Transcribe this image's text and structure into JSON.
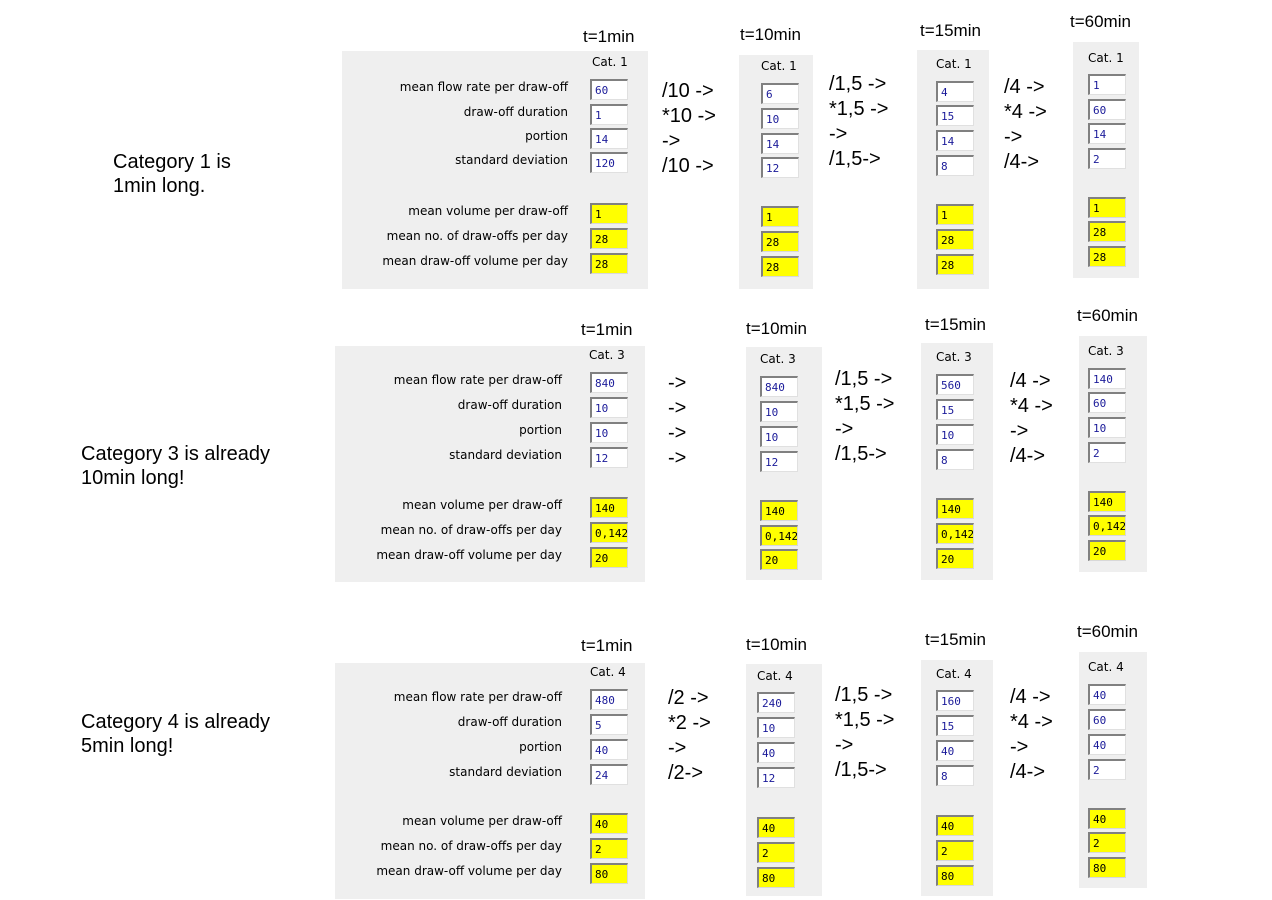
{
  "labels": {
    "flow": "mean flow rate per draw-off",
    "duration": "draw-off duration",
    "portion": "portion",
    "sd": "standard deviation",
    "vol": "mean volume per draw-off",
    "num": "mean no. of draw-offs per day",
    "dayvol": "mean draw-off volume per day"
  },
  "times": [
    "t=1min",
    "t=10min",
    "t=15min",
    "t=60min"
  ],
  "sections": [
    {
      "note": [
        "Category 1 is",
        "1min long."
      ],
      "cat": "Cat. 1",
      "ops": [
        [
          "/10 ->",
          "*10 ->",
          "->",
          "/10 ->"
        ],
        [
          "/1,5 ->",
          "*1,5 ->",
          "->",
          "/1,5->"
        ],
        [
          "/4 ->",
          "*4 ->",
          "->",
          "/4->"
        ]
      ],
      "panels": [
        {
          "in": [
            "60",
            "1",
            "14",
            "120"
          ],
          "out": [
            "1",
            "28",
            "28"
          ]
        },
        {
          "in": [
            "6",
            "10",
            "14",
            "12"
          ],
          "out": [
            "1",
            "28",
            "28"
          ]
        },
        {
          "in": [
            "4",
            "15",
            "14",
            "8"
          ],
          "out": [
            "1",
            "28",
            "28"
          ]
        },
        {
          "in": [
            "1",
            "60",
            "14",
            "2"
          ],
          "out": [
            "1",
            "28",
            "28"
          ]
        }
      ]
    },
    {
      "note": [
        "Category 3 is already",
        "10min long!"
      ],
      "cat": "Cat. 3",
      "ops": [
        [
          "->",
          "->",
          "->",
          "->"
        ],
        [
          "/1,5 ->",
          "*1,5 ->",
          "->",
          "/1,5->"
        ],
        [
          "/4 ->",
          "*4 ->",
          "->",
          "/4->"
        ]
      ],
      "panels": [
        {
          "in": [
            "840",
            "10",
            "10",
            "12"
          ],
          "out": [
            "140",
            "0,142",
            "20"
          ]
        },
        {
          "in": [
            "840",
            "10",
            "10",
            "12"
          ],
          "out": [
            "140",
            "0,142",
            "20"
          ]
        },
        {
          "in": [
            "560",
            "15",
            "10",
            "8"
          ],
          "out": [
            "140",
            "0,142",
            "20"
          ]
        },
        {
          "in": [
            "140",
            "60",
            "10",
            "2"
          ],
          "out": [
            "140",
            "0,142",
            "20"
          ]
        }
      ]
    },
    {
      "note": [
        "Category 4 is already",
        "5min long!"
      ],
      "cat": "Cat. 4",
      "ops": [
        [
          "/2 ->",
          "*2 ->",
          "->",
          "/2->"
        ],
        [
          "/1,5 ->",
          "*1,5 ->",
          "->",
          "/1,5->"
        ],
        [
          "/4 ->",
          "*4 ->",
          "->",
          "/4->"
        ]
      ],
      "panels": [
        {
          "in": [
            "480",
            "5",
            "40",
            "24"
          ],
          "out": [
            "40",
            "2",
            "80"
          ]
        },
        {
          "in": [
            "240",
            "10",
            "40",
            "12"
          ],
          "out": [
            "40",
            "2",
            "80"
          ]
        },
        {
          "in": [
            "160",
            "15",
            "40",
            "8"
          ],
          "out": [
            "40",
            "2",
            "80"
          ]
        },
        {
          "in": [
            "40",
            "60",
            "40",
            "2"
          ],
          "out": [
            "40",
            "2",
            "80"
          ]
        }
      ]
    }
  ]
}
